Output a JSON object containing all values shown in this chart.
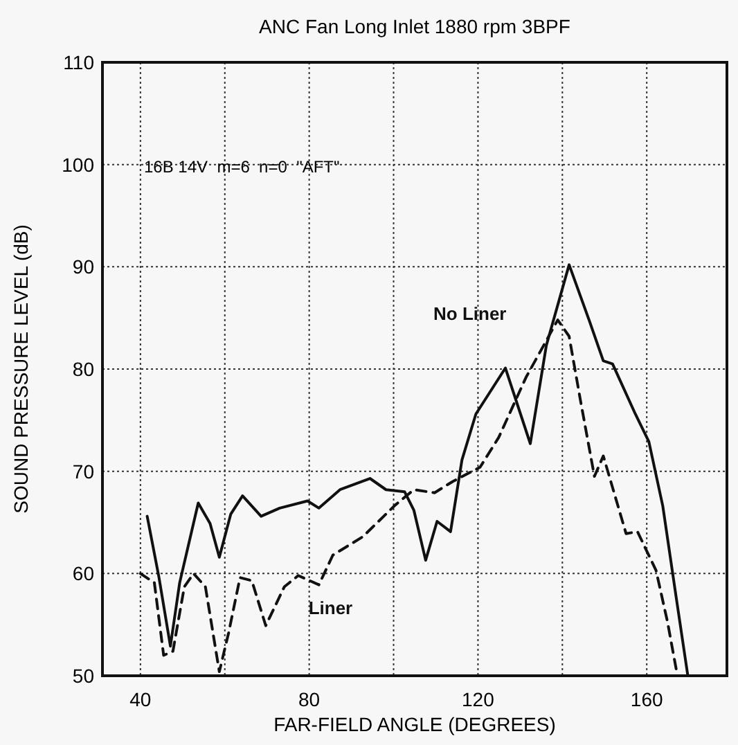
{
  "chart_data": {
    "type": "line",
    "title": "ANC Fan Long Inlet 1880 rpm 3BPF",
    "xlabel": "FAR-FIELD ANGLE (DEGREES)",
    "ylabel": "SOUND PRESSURE LEVEL (dB)",
    "xlim": [
      31,
      179
    ],
    "xticks": [
      40,
      {
        "value": 60,
        "label": null
      },
      80,
      {
        "value": 100,
        "label": null
      },
      120,
      {
        "value": 140,
        "label": null
      },
      160
    ],
    "ylim": [
      50,
      110
    ],
    "yticks": [
      50,
      60,
      70,
      80,
      90,
      100,
      110
    ],
    "grid": true,
    "legend": false,
    "marker": "none",
    "annotations": [
      "16B 14V  m=6  n=0  \"AFT\""
    ],
    "series": [
      {
        "name": "No Liner",
        "color": "#111111",
        "line_style": "solid",
        "x": [
          41.6,
          44.4,
          47.1,
          49.3,
          53.7,
          56.5,
          58.7,
          61.4,
          64.2,
          68.6,
          73,
          79.6,
          82.3,
          87.3,
          94.4,
          98.2,
          102.6,
          104.8,
          107.6,
          110.3,
          113.5,
          116.2,
          119.5,
          126.5,
          132.4,
          136.2,
          141.6,
          146.5,
          149.7,
          151.9,
          157.3,
          160.5,
          163.8,
          167,
          169.7
        ],
        "values": [
          65.6,
          59.6,
          52.9,
          59.1,
          66.9,
          64.9,
          61.6,
          65.8,
          67.6,
          65.6,
          66.4,
          67.1,
          66.4,
          68.2,
          69.3,
          68.2,
          68,
          66.2,
          61.3,
          65.1,
          64.1,
          71.1,
          75.6,
          80.1,
          72.7,
          82.3,
          90.2,
          84.6,
          80.8,
          80.5,
          75.6,
          72.9,
          66.6,
          57.6,
          50.1
        ]
      },
      {
        "name": "Liner",
        "color": "#111111",
        "line_style": "dashed",
        "x": [
          40,
          43.3,
          45.5,
          47.7,
          50.4,
          52.6,
          55.4,
          58.7,
          60.9,
          63.6,
          66.4,
          69.7,
          74.1,
          77.4,
          82.3,
          85.6,
          92.7,
          100.4,
          104.8,
          109.7,
          114,
          120.5,
          124.9,
          131.4,
          138.9,
          141.6,
          144.3,
          147.6,
          149.7,
          155.1,
          157.8,
          162.2,
          164.9,
          167
        ],
        "values": [
          60,
          59.1,
          52,
          52.4,
          58.7,
          60,
          58.7,
          50.4,
          54.2,
          59.6,
          59.3,
          54.9,
          58.7,
          59.8,
          58.9,
          61.8,
          63.6,
          66.7,
          68.2,
          67.9,
          69,
          70.4,
          73.3,
          79.2,
          84.8,
          83.2,
          76.9,
          69.5,
          71.5,
          63.9,
          64.1,
          60.3,
          55.3,
          50.6
        ]
      }
    ]
  }
}
